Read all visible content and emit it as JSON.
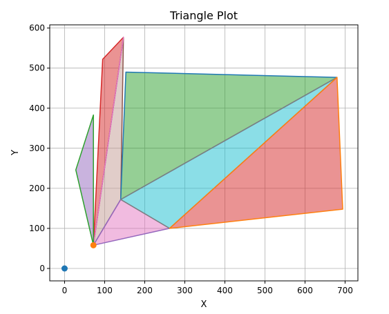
{
  "chart_data": {
    "type": "scatter",
    "title": "Triangle Plot",
    "xlabel": "X",
    "ylabel": "Y",
    "xlim": [
      -37,
      732
    ],
    "ylim": [
      -31,
      608
    ],
    "xticks": [
      0,
      100,
      200,
      300,
      400,
      500,
      600,
      700
    ],
    "yticks": [
      0,
      100,
      200,
      300,
      400,
      500,
      600
    ],
    "grid": true,
    "points": [
      {
        "x": 0,
        "y": 0,
        "color": "#1f77b4"
      },
      {
        "x": 72,
        "y": 58,
        "color": "#ff7f0e"
      }
    ],
    "triangles": [
      {
        "vertices": [
          [
            147,
            577
          ],
          [
            95,
            522
          ],
          [
            72,
            58
          ]
        ],
        "edge_color": "#d62728",
        "fill": "#d62728"
      },
      {
        "vertices": [
          [
            147,
            577
          ],
          [
            72,
            58
          ],
          [
            140,
            172
          ]
        ],
        "edge_color": "#8c564b",
        "fill": "#c49c94"
      },
      {
        "vertices": [
          [
            147,
            577
          ],
          [
            72,
            58
          ],
          [
            72,
            58
          ]
        ],
        "edge_color": "#e377c2",
        "fill": "#bcbd22"
      },
      {
        "vertices": [
          [
            72,
            58
          ],
          [
            28,
            246
          ],
          [
            72,
            383
          ]
        ],
        "edge_color": "#2ca02c",
        "fill": "#9467bd"
      },
      {
        "vertices": [
          [
            72,
            58
          ],
          [
            140,
            172
          ],
          [
            262,
            100
          ]
        ],
        "edge_color": "#9467bd",
        "fill": "#e377c2"
      },
      {
        "vertices": [
          [
            153,
            490
          ],
          [
            680,
            477
          ],
          [
            140,
            172
          ]
        ],
        "edge_color": "#1f77b4",
        "fill": "#2ca02c"
      },
      {
        "vertices": [
          [
            680,
            477
          ],
          [
            140,
            172
          ],
          [
            262,
            100
          ]
        ],
        "edge_color": "#7f7f7f",
        "fill": "#17becf"
      },
      {
        "vertices": [
          [
            680,
            477
          ],
          [
            694,
            148
          ],
          [
            262,
            100
          ]
        ],
        "edge_color": "#ff7f0e",
        "fill": "#d62728"
      }
    ]
  }
}
